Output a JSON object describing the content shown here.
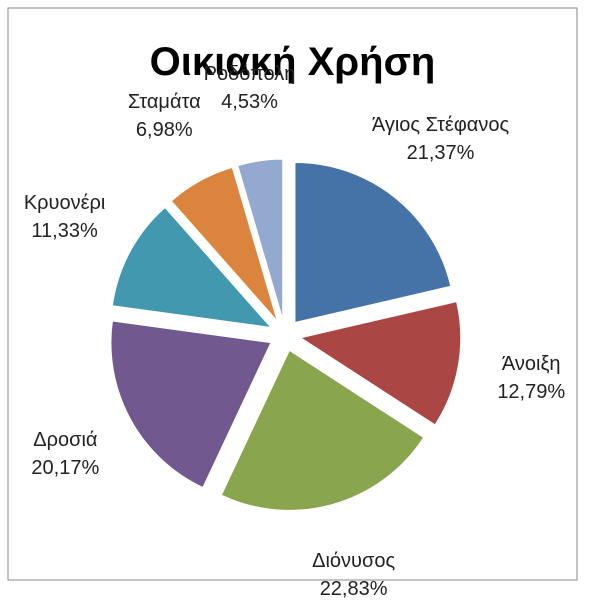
{
  "chart_data": {
    "type": "pie",
    "title": "Οικιακή Χρήση",
    "categories": [
      "Άγιος Στέφανος",
      "Άνοιξη",
      "Διόνυσος",
      "Δροσιά",
      "Κρυονέρι",
      "Σταμάτα",
      "Ροδόπολη"
    ],
    "values": [
      21.37,
      12.79,
      22.83,
      20.17,
      11.33,
      6.98,
      4.53
    ],
    "value_labels": [
      "21,37%",
      "12,79%",
      "22,83%",
      "20,17%",
      "11,33%",
      "6,98%",
      "4,53%"
    ],
    "colors": [
      "#4572a7",
      "#aa4643",
      "#89a54e",
      "#71588f",
      "#4198af",
      "#db843d",
      "#93a9cf"
    ],
    "exploded": true
  }
}
